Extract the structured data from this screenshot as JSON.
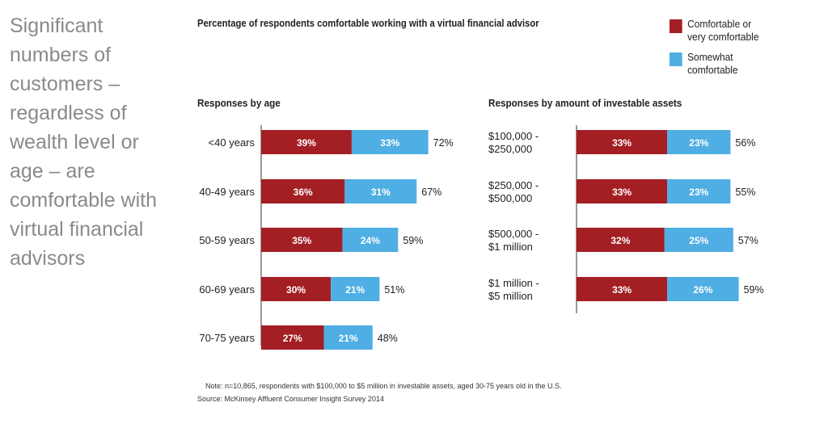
{
  "headline": "Significant numbers of customers – regardless of wealth level or age – are comfortable with virtual financial advisors",
  "note": "Note: n=10,865, respondents with $100,000 to $5 million in investable assets, aged 30-75 years old in the U.S.",
  "source": "Source: McKinsey Affluent Consumer Insight Survey 2014",
  "colors": {
    "comfortable": "#A31F24",
    "somewhat": "#4FAEE3"
  },
  "chart_data": [
    {
      "type": "bar",
      "orientation": "horizontal-stacked",
      "title": "Percentage of respondents comfortable working with a virtual financial advisor",
      "subtitle": "Responses by age",
      "legend": [
        "Comfortable or very comfortable",
        "Somewhat comfortable"
      ],
      "legend_placement": "top-right",
      "categories": [
        [
          "<40 years"
        ],
        [
          "40-49 years"
        ],
        [
          "50-59 years"
        ],
        [
          "60-69 years"
        ],
        [
          "70-75 years"
        ]
      ],
      "series": [
        {
          "name": "Comfortable or very comfortable",
          "values": [
            39,
            36,
            35,
            30,
            27
          ]
        },
        {
          "name": "Somewhat comfortable",
          "values": [
            33,
            31,
            24,
            21,
            21
          ]
        }
      ],
      "totals": [
        72,
        67,
        59,
        51,
        48
      ]
    },
    {
      "type": "bar",
      "orientation": "horizontal-stacked",
      "subtitle": "Responses by amount of investable assets",
      "categories": [
        [
          "$100,000 -",
          "$250,000"
        ],
        [
          "$250,000 -",
          "$500,000"
        ],
        [
          "$500,000 -",
          "$1 million"
        ],
        [
          "$1 million -",
          "$5 million"
        ]
      ],
      "series": [
        {
          "name": "Comfortable or very comfortable",
          "values": [
            33,
            33,
            32,
            33
          ]
        },
        {
          "name": "Somewhat comfortable",
          "values": [
            23,
            23,
            25,
            26
          ]
        }
      ],
      "totals": [
        56,
        55,
        57,
        59
      ]
    }
  ]
}
